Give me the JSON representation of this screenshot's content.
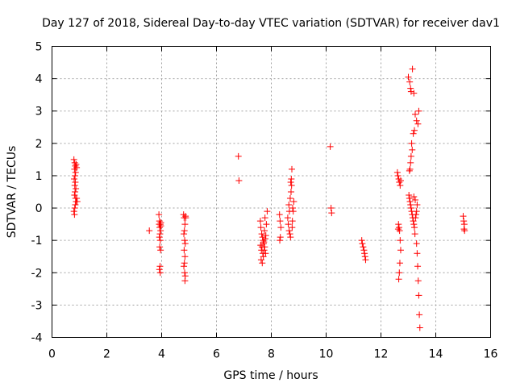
{
  "chart_data": {
    "type": "scatter",
    "title": "Day 127 of 2018, Sidereal Day-to-day VTEC variation (SDTVAR) for receiver dav1",
    "xlabel": "GPS time / hours",
    "ylabel": "SDTVAR / TECUs",
    "xlim": [
      0,
      16
    ],
    "ylim": [
      -4,
      5
    ],
    "xticks": [
      "0",
      "2",
      "4",
      "6",
      "8",
      "10",
      "12",
      "14",
      "16"
    ],
    "yticks": [
      "-4",
      "-3",
      "-2",
      "-1",
      "0",
      "1",
      "2",
      "3",
      "4",
      "5"
    ],
    "grid": true,
    "marker": "+",
    "color": "#ff0000",
    "series": [
      {
        "name": "SDTVAR",
        "points": [
          [
            0.8,
            1.5
          ],
          [
            0.83,
            1.4
          ],
          [
            0.85,
            1.3
          ],
          [
            0.82,
            1.2
          ],
          [
            0.86,
            1.1
          ],
          [
            0.84,
            1.0
          ],
          [
            0.81,
            0.9
          ],
          [
            0.85,
            0.8
          ],
          [
            0.83,
            0.7
          ],
          [
            0.87,
            0.6
          ],
          [
            0.84,
            0.5
          ],
          [
            0.82,
            0.4
          ],
          [
            0.86,
            0.3
          ],
          [
            0.88,
            0.2
          ],
          [
            0.85,
            0.1
          ],
          [
            0.83,
            0.0
          ],
          [
            0.8,
            -0.1
          ],
          [
            0.82,
            -0.2
          ],
          [
            0.9,
            0.3
          ],
          [
            0.92,
            0.2
          ],
          [
            0.88,
            1.35
          ],
          [
            0.9,
            1.25
          ],
          [
            3.55,
            -0.7
          ],
          [
            3.9,
            -0.2
          ],
          [
            3.92,
            -0.4
          ],
          [
            3.95,
            -0.5
          ],
          [
            3.97,
            -0.55
          ],
          [
            3.93,
            -0.6
          ],
          [
            3.96,
            -0.7
          ],
          [
            3.94,
            -0.8
          ],
          [
            3.92,
            -0.9
          ],
          [
            3.95,
            -1.0
          ],
          [
            3.93,
            -1.2
          ],
          [
            3.96,
            -1.3
          ],
          [
            3.94,
            -1.8
          ],
          [
            3.92,
            -1.9
          ],
          [
            3.95,
            -2.0
          ],
          [
            3.97,
            -0.45
          ],
          [
            3.91,
            -0.5
          ],
          [
            4.8,
            -0.2
          ],
          [
            4.82,
            -0.3
          ],
          [
            4.85,
            -0.5
          ],
          [
            4.83,
            -0.7
          ],
          [
            4.81,
            -0.8
          ],
          [
            4.84,
            -1.0
          ],
          [
            4.86,
            -1.1
          ],
          [
            4.82,
            -1.3
          ],
          [
            4.85,
            -1.5
          ],
          [
            4.83,
            -1.7
          ],
          [
            4.81,
            -1.8
          ],
          [
            4.84,
            -2.0
          ],
          [
            4.86,
            -2.1
          ],
          [
            4.85,
            -2.25
          ],
          [
            4.88,
            -0.3
          ],
          [
            4.87,
            -0.25
          ],
          [
            6.8,
            1.6
          ],
          [
            6.82,
            0.85
          ],
          [
            7.6,
            -0.4
          ],
          [
            7.62,
            -0.6
          ],
          [
            7.65,
            -0.8
          ],
          [
            7.68,
            -0.9
          ],
          [
            7.7,
            -1.0
          ],
          [
            7.72,
            -1.1
          ],
          [
            7.66,
            -1.2
          ],
          [
            7.64,
            -1.3
          ],
          [
            7.69,
            -1.4
          ],
          [
            7.71,
            -1.5
          ],
          [
            7.63,
            -1.6
          ],
          [
            7.67,
            -1.7
          ],
          [
            7.74,
            -1.3
          ],
          [
            7.76,
            -1.2
          ],
          [
            7.78,
            -0.95
          ],
          [
            7.8,
            -0.85
          ],
          [
            7.75,
            -0.7
          ],
          [
            7.82,
            -0.5
          ],
          [
            7.85,
            -0.1
          ],
          [
            7.79,
            -1.4
          ],
          [
            7.73,
            -1.05
          ],
          [
            7.61,
            -1.15
          ],
          [
            7.77,
            -0.3
          ],
          [
            8.3,
            -0.2
          ],
          [
            8.32,
            -0.4
          ],
          [
            8.35,
            -0.6
          ],
          [
            8.33,
            -0.9
          ],
          [
            8.31,
            -1.0
          ],
          [
            8.6,
            -0.3
          ],
          [
            8.62,
            -0.5
          ],
          [
            8.65,
            -0.7
          ],
          [
            8.68,
            -0.8
          ],
          [
            8.7,
            -0.9
          ],
          [
            8.66,
            -0.1
          ],
          [
            8.64,
            0.1
          ],
          [
            8.69,
            0.3
          ],
          [
            8.72,
            0.5
          ],
          [
            8.74,
            0.7
          ],
          [
            8.71,
            0.8
          ],
          [
            8.73,
            0.9
          ],
          [
            8.75,
            1.2
          ],
          [
            8.78,
            0.0
          ],
          [
            8.8,
            -0.1
          ],
          [
            8.82,
            0.2
          ],
          [
            8.77,
            -0.4
          ],
          [
            8.76,
            -0.6
          ],
          [
            10.15,
            1.9
          ],
          [
            10.18,
            0.0
          ],
          [
            10.2,
            -0.15
          ],
          [
            11.3,
            -1.0
          ],
          [
            11.32,
            -1.1
          ],
          [
            11.35,
            -1.2
          ],
          [
            11.38,
            -1.3
          ],
          [
            11.4,
            -1.4
          ],
          [
            11.42,
            -1.5
          ],
          [
            11.44,
            -1.6
          ],
          [
            12.6,
            1.1
          ],
          [
            12.62,
            1.0
          ],
          [
            12.65,
            0.9
          ],
          [
            12.67,
            0.8
          ],
          [
            12.7,
            0.7
          ],
          [
            12.72,
            0.85
          ],
          [
            12.64,
            -0.5
          ],
          [
            12.66,
            -0.6
          ],
          [
            12.68,
            -0.7
          ],
          [
            12.7,
            -1.0
          ],
          [
            12.72,
            -1.3
          ],
          [
            12.69,
            -1.7
          ],
          [
            12.67,
            -2.0
          ],
          [
            12.65,
            -2.2
          ],
          [
            12.63,
            -0.65
          ],
          [
            13.0,
            4.05
          ],
          [
            13.05,
            3.9
          ],
          [
            13.08,
            3.7
          ],
          [
            13.1,
            3.6
          ],
          [
            13.15,
            4.3
          ],
          [
            13.2,
            3.55
          ],
          [
            13.12,
            2.0
          ],
          [
            13.14,
            1.8
          ],
          [
            13.1,
            1.6
          ],
          [
            13.08,
            1.4
          ],
          [
            13.06,
            1.2
          ],
          [
            13.04,
            1.15
          ],
          [
            13.18,
            2.3
          ],
          [
            13.22,
            2.4
          ],
          [
            13.25,
            2.9
          ],
          [
            13.3,
            2.7
          ],
          [
            13.35,
            2.6
          ],
          [
            13.38,
            3.0
          ],
          [
            13.02,
            0.4
          ],
          [
            13.04,
            0.3
          ],
          [
            13.06,
            0.2
          ],
          [
            13.08,
            0.1
          ],
          [
            13.1,
            0.0
          ],
          [
            13.12,
            -0.1
          ],
          [
            13.14,
            -0.2
          ],
          [
            13.16,
            -0.3
          ],
          [
            13.18,
            -0.4
          ],
          [
            13.2,
            -0.5
          ],
          [
            13.22,
            -0.6
          ],
          [
            13.24,
            -0.8
          ],
          [
            13.26,
            -0.3
          ],
          [
            13.28,
            -0.2
          ],
          [
            13.3,
            -0.1
          ],
          [
            13.32,
            0.1
          ],
          [
            13.2,
            0.35
          ],
          [
            13.25,
            0.25
          ],
          [
            13.3,
            -1.1
          ],
          [
            13.32,
            -1.4
          ],
          [
            13.34,
            -1.8
          ],
          [
            13.36,
            -2.25
          ],
          [
            13.38,
            -2.7
          ],
          [
            13.4,
            -3.3
          ],
          [
            13.42,
            -3.7
          ],
          [
            15.0,
            -0.25
          ],
          [
            15.02,
            -0.4
          ],
          [
            15.04,
            -0.5
          ],
          [
            15.03,
            -0.65
          ],
          [
            15.05,
            -0.7
          ]
        ]
      }
    ]
  }
}
